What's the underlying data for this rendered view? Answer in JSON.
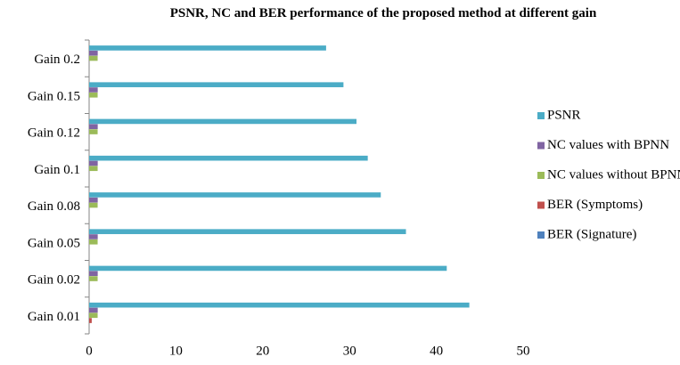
{
  "chart_data": {
    "type": "hbar",
    "title": "PSNR, NC and BER performance of the proposed method at different gain",
    "categories": [
      "Gain 0.01",
      "Gain 0.02",
      "Gain 0.05",
      "Gain 0.08",
      "Gain 0.1",
      "Gain 0.12",
      "Gain 0.15",
      "Gain 0.2"
    ],
    "series": [
      {
        "name": "PSNR",
        "color": "#4bacc6",
        "values": [
          43.8,
          41.2,
          36.5,
          33.6,
          32.1,
          30.8,
          29.3,
          27.3
        ]
      },
      {
        "name": " NC values with BPNN",
        "color": "#8064a2",
        "values": [
          0.99,
          0.99,
          0.99,
          0.99,
          0.99,
          0.99,
          0.99,
          0.99
        ]
      },
      {
        "name": "NC values without BPNN",
        "color": "#9bbb59",
        "values": [
          0.98,
          0.98,
          0.98,
          0.98,
          0.98,
          0.98,
          0.98,
          0.98
        ]
      },
      {
        "name": "BER (Symptoms)",
        "color": "#c0504d",
        "values": [
          0.3,
          0,
          0,
          0,
          0,
          0,
          0,
          0
        ]
      },
      {
        "name": "BER (Signature)",
        "color": "#4f81bd",
        "values": [
          0,
          0,
          0,
          0,
          0,
          0,
          0,
          0
        ]
      }
    ],
    "xlim": [
      0,
      50
    ],
    "xticks": [
      0,
      10,
      20,
      30,
      40,
      50
    ]
  }
}
